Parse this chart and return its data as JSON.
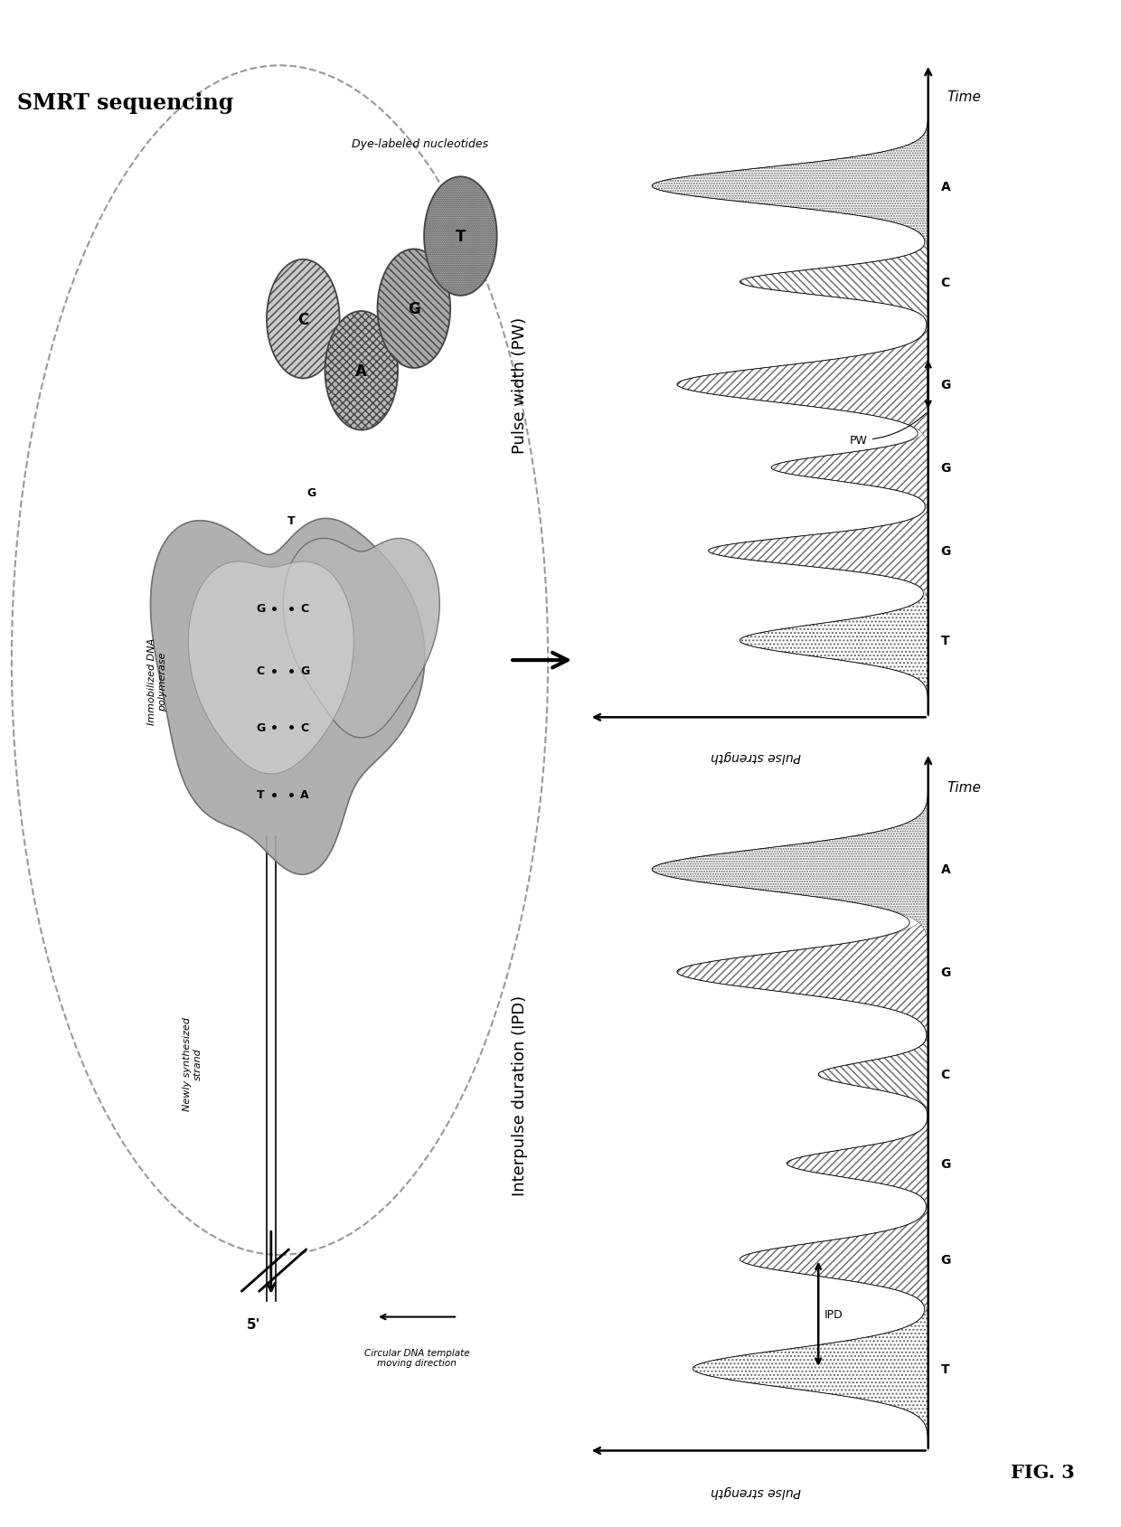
{
  "title": "SMRT sequencing",
  "fig3_label": "FIG. 3",
  "background_color": "#ffffff",
  "ipd_title": "Interpulse duration (IPD)",
  "pw_title": "Pulse width (PW)",
  "pulse_strength_label": "Pulse strength",
  "time_label": "Time",
  "ipd_annotation": "IPD",
  "pw_annotation": "PW",
  "dye_nucleotides_label": "Dye-labeled nucleotides",
  "polymerase_label": "Immobilized DNA\npolymerase",
  "newly_synthesized_label": "Newly synthesized\nstrand",
  "circular_template_label": "Circular DNA template\nmoving direction",
  "ipd_labels": [
    "T",
    "G",
    "G",
    "C",
    "G",
    "A"
  ],
  "ipd_positions": [
    1.2,
    2.8,
    4.2,
    5.5,
    7.0,
    8.5
  ],
  "ipd_amplitudes": [
    0.75,
    0.6,
    0.45,
    0.35,
    0.8,
    0.88
  ],
  "ipd_sigmas": [
    0.28,
    0.24,
    0.2,
    0.18,
    0.28,
    0.3
  ],
  "pw_labels": [
    "T",
    "G",
    "G",
    "G",
    "C",
    "A"
  ],
  "pw_positions": [
    1.2,
    2.6,
    3.9,
    5.2,
    6.8,
    8.3
  ],
  "pw_amplitudes": [
    0.6,
    0.7,
    0.5,
    0.8,
    0.6,
    0.88
  ],
  "pw_sigmas": [
    0.25,
    0.22,
    0.2,
    0.28,
    0.2,
    0.28
  ]
}
